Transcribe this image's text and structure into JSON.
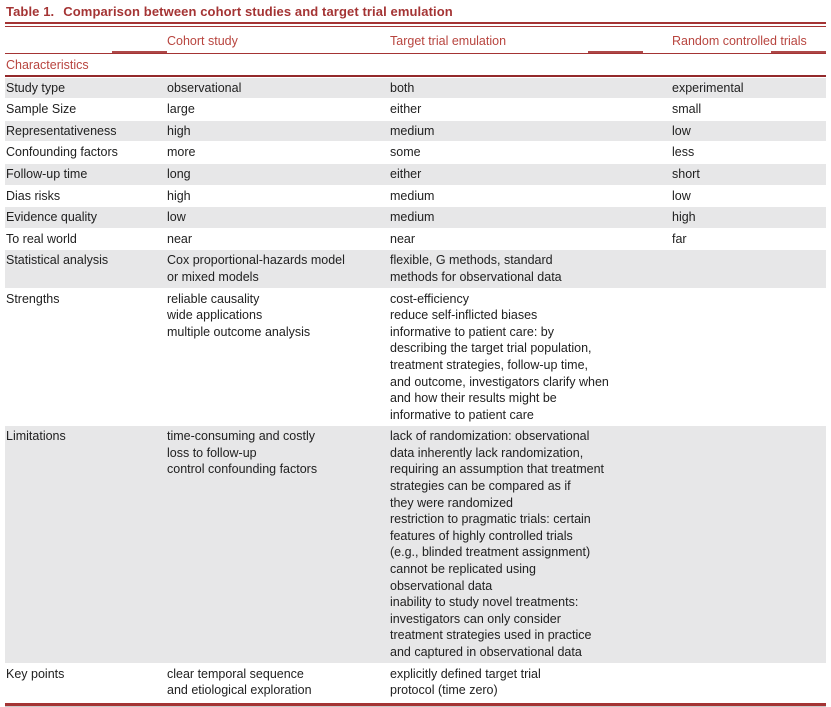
{
  "colors": {
    "rule_red": "#A43434",
    "header_text_red": "#B8453F",
    "dark_rule_red": "#93292B",
    "row_shade": "#E7E7E8",
    "body_text": "#212121"
  },
  "table": {
    "title_prefix": "Table 1.",
    "title_text": "Comparison between cohort studies and target trial emulation",
    "columns": [
      "Cohort study",
      "Target trial emulation",
      "Random controlled trials"
    ],
    "section_label": "Characteristics",
    "rows": [
      {
        "label": "Study type",
        "cohort": [
          "observational"
        ],
        "target": [
          "both"
        ],
        "rct": [
          "experimental"
        ]
      },
      {
        "label": "Sample Size",
        "cohort": [
          "large"
        ],
        "target": [
          "either"
        ],
        "rct": [
          "small"
        ]
      },
      {
        "label": "Representativeness",
        "cohort": [
          "high"
        ],
        "target": [
          "medium"
        ],
        "rct": [
          "low"
        ]
      },
      {
        "label": "Confounding factors",
        "cohort": [
          "more"
        ],
        "target": [
          "some"
        ],
        "rct": [
          "less"
        ]
      },
      {
        "label": "Follow-up time",
        "cohort": [
          "long"
        ],
        "target": [
          "either"
        ],
        "rct": [
          "short"
        ]
      },
      {
        "label": "Dias risks",
        "cohort": [
          "high"
        ],
        "target": [
          "medium"
        ],
        "rct": [
          "low"
        ]
      },
      {
        "label": "Evidence quality",
        "cohort": [
          "low"
        ],
        "target": [
          "medium"
        ],
        "rct": [
          "high"
        ]
      },
      {
        "label": "To real world",
        "cohort": [
          "near"
        ],
        "target": [
          "near"
        ],
        "rct": [
          "far"
        ]
      },
      {
        "label": "Statistical analysis",
        "cohort": [
          "Cox proportional-hazards model",
          "or mixed models"
        ],
        "target": [
          "flexible, G methods, standard",
          "methods for observational data"
        ],
        "rct": []
      },
      {
        "label": "Strengths",
        "cohort": [
          "reliable causality",
          "wide applications",
          "multiple outcome analysis"
        ],
        "target": [
          "cost-efficiency",
          "reduce self-inflicted biases",
          "informative to patient care: by",
          "describing the target trial population,",
          "treatment strategies, follow-up time,",
          "and outcome, investigators clarify when",
          "and how their results might be",
          "informative to patient care"
        ],
        "rct": []
      },
      {
        "label": "Limitations",
        "cohort": [
          "time-consuming and costly",
          "loss to follow-up",
          "control confounding factors"
        ],
        "target": [
          "lack of randomization: observational",
          "data inherently lack randomization,",
          "requiring an assumption that treatment",
          "strategies can be compared as if",
          "they were randomized",
          "restriction to pragmatic trials: certain",
          "features of highly controlled trials",
          "(e.g., blinded treatment assignment)",
          "cannot be replicated using",
          "observational data",
          "inability to study novel treatments:",
          "investigators can only consider",
          "treatment strategies used in practice",
          "and captured in observational data"
        ],
        "rct": []
      },
      {
        "label": "Key points",
        "cohort": [
          "clear temporal sequence",
          "and etiological exploration"
        ],
        "target": [
          "explicitly defined target trial",
          "protocol (time zero)"
        ],
        "rct": []
      }
    ]
  }
}
